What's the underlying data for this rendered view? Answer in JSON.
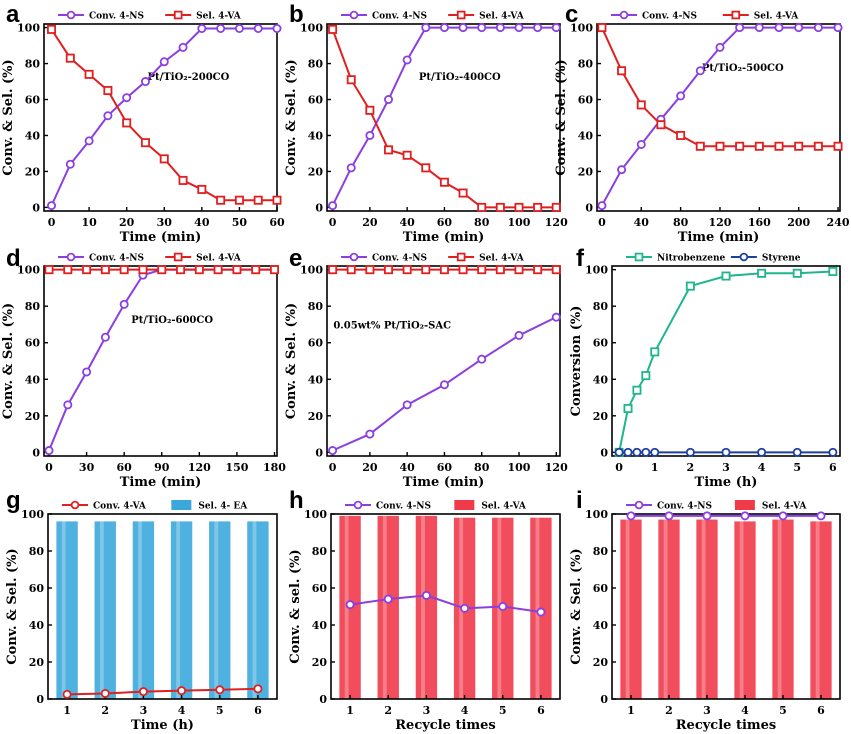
{
  "chart_data": [
    {
      "panel": "a",
      "type": "line",
      "xlabel": "Time (min)",
      "ylabel": "Conv. & Sel. (%)",
      "xlim": [
        -2,
        60
      ],
      "ylim": [
        -2,
        102
      ],
      "xticks": [
        0,
        10,
        20,
        30,
        40,
        50,
        60
      ],
      "yticks": [
        0,
        20,
        40,
        60,
        80,
        100
      ],
      "annotation": "Pt/TiO₂-200CO",
      "legend_position": "top",
      "series": [
        {
          "name": "Conv. 4-NS",
          "color": "#8B3FE0",
          "marker": "circle",
          "x": [
            0,
            5,
            10,
            15,
            20,
            25,
            30,
            35,
            40,
            45,
            50,
            55,
            60
          ],
          "y": [
            1,
            24,
            37,
            51,
            61,
            70,
            81,
            89,
            99.5,
            99.5,
            99.5,
            99.5,
            99.5
          ]
        },
        {
          "name": "Sel. 4-VA",
          "color": "#E02020",
          "marker": "square",
          "x": [
            0,
            5,
            10,
            15,
            20,
            25,
            30,
            35,
            40,
            45,
            50,
            55,
            60
          ],
          "y": [
            99,
            83,
            74,
            65,
            47,
            36,
            27,
            15,
            10,
            4,
            4,
            4,
            4
          ]
        }
      ]
    },
    {
      "panel": "b",
      "type": "line",
      "xlabel": "Time (min)",
      "ylabel": "Conv. & Sel. (%)",
      "xlim": [
        -3,
        122
      ],
      "ylim": [
        -2,
        102
      ],
      "xticks": [
        0,
        20,
        40,
        60,
        80,
        100,
        120
      ],
      "yticks": [
        0,
        20,
        40,
        60,
        80,
        100
      ],
      "annotation": "Pt/TiO₂-400CO",
      "legend_position": "top",
      "series": [
        {
          "name": "Conv. 4-NS",
          "color": "#8B3FE0",
          "marker": "circle",
          "x": [
            0,
            10,
            20,
            30,
            40,
            50,
            60,
            70,
            80,
            90,
            100,
            110,
            120
          ],
          "y": [
            1,
            22,
            40,
            60,
            82,
            100,
            100,
            100,
            100,
            100,
            100,
            100,
            100
          ]
        },
        {
          "name": "Sel. 4-VA",
          "color": "#E02020",
          "marker": "square",
          "x": [
            0,
            10,
            20,
            30,
            40,
            50,
            60,
            70,
            80,
            90,
            100,
            110,
            120
          ],
          "y": [
            99,
            71,
            54,
            32,
            29,
            22,
            14,
            8,
            0,
            0,
            0,
            0,
            0
          ]
        }
      ]
    },
    {
      "panel": "c",
      "type": "line",
      "xlabel": "Time (min)",
      "ylabel": "Conv. & Sel. (%)",
      "xlim": [
        -5,
        242
      ],
      "ylim": [
        -2,
        102
      ],
      "xticks": [
        0,
        40,
        80,
        120,
        160,
        200,
        240
      ],
      "yticks": [
        0,
        20,
        40,
        60,
        80,
        100
      ],
      "annotation": "Pt/TiO₂-500CO",
      "legend_position": "top",
      "series": [
        {
          "name": "Conv. 4-NS",
          "color": "#8B3FE0",
          "marker": "circle",
          "x": [
            0,
            20,
            40,
            60,
            80,
            100,
            120,
            140,
            160,
            180,
            200,
            220,
            240
          ],
          "y": [
            1,
            21,
            35,
            49,
            62,
            76,
            89,
            100,
            100,
            100,
            100,
            100,
            100
          ]
        },
        {
          "name": "Sel. 4-VA",
          "color": "#E02020",
          "marker": "square",
          "x": [
            0,
            20,
            40,
            60,
            80,
            100,
            120,
            140,
            160,
            180,
            200,
            220,
            240
          ],
          "y": [
            100,
            76,
            57,
            46,
            40,
            34,
            34,
            34,
            34,
            34,
            34,
            34,
            34
          ]
        }
      ]
    },
    {
      "panel": "d",
      "type": "line",
      "xlabel": "Time (min)",
      "ylabel": "Conv. & Sel. (%)",
      "xlim": [
        -4,
        182
      ],
      "ylim": [
        -2,
        102
      ],
      "xticks": [
        0,
        30,
        60,
        90,
        120,
        150,
        180
      ],
      "yticks": [
        0,
        20,
        40,
        60,
        80,
        100
      ],
      "annotation": "Pt/TiO₂-600CO",
      "legend_position": "top",
      "series": [
        {
          "name": "Conv. 4-NS",
          "color": "#8B3FE0",
          "marker": "circle",
          "x": [
            0,
            15,
            30,
            45,
            60,
            75,
            90,
            105,
            120,
            135,
            150,
            165,
            180
          ],
          "y": [
            1,
            26,
            44,
            63,
            81,
            97,
            100,
            100,
            100,
            100,
            100,
            100,
            100
          ]
        },
        {
          "name": "Sel. 4-VA",
          "color": "#E02020",
          "marker": "square",
          "x": [
            0,
            15,
            30,
            45,
            60,
            75,
            90,
            105,
            120,
            135,
            150,
            165,
            180
          ],
          "y": [
            100,
            100,
            100,
            100,
            100,
            100,
            100,
            100,
            100,
            100,
            100,
            100,
            100
          ]
        }
      ]
    },
    {
      "panel": "e",
      "type": "line",
      "xlabel": "Time (min)",
      "ylabel": "Conv. & Sel. (%)",
      "xlim": [
        -3,
        122
      ],
      "ylim": [
        -2,
        102
      ],
      "xticks": [
        0,
        20,
        40,
        60,
        80,
        100,
        120
      ],
      "yticks": [
        0,
        20,
        40,
        60,
        80,
        100
      ],
      "annotation": "0.05wt% Pt/TiO₂-SAC",
      "legend_position": "top",
      "series": [
        {
          "name": "Conv. 4-NS",
          "color": "#8B3FE0",
          "marker": "circle",
          "x": [
            0,
            20,
            40,
            60,
            80,
            100,
            120
          ],
          "y": [
            1,
            10,
            26,
            37,
            51,
            64,
            74
          ]
        },
        {
          "name": "Sel. 4-VA",
          "color": "#E02020",
          "marker": "square",
          "x": [
            0,
            10,
            20,
            30,
            40,
            50,
            60,
            70,
            80,
            90,
            100,
            110,
            120
          ],
          "y": [
            100,
            100,
            100,
            100,
            100,
            100,
            100,
            100,
            100,
            100,
            100,
            100,
            100
          ]
        }
      ]
    },
    {
      "panel": "f",
      "type": "line",
      "xlabel": "Time (h)",
      "ylabel": "Conversion (%)",
      "xlim": [
        -0.2,
        6.2
      ],
      "ylim": [
        -2,
        102
      ],
      "xticks": [
        0,
        1,
        2,
        3,
        4,
        5,
        6
      ],
      "yticks": [
        0,
        20,
        40,
        60,
        80,
        100
      ],
      "annotation": "",
      "legend_position": "top",
      "series": [
        {
          "name": "Nitrobenzene",
          "color": "#1FB58F",
          "marker": "square",
          "x": [
            0,
            0.25,
            0.5,
            0.75,
            1,
            2,
            3,
            4,
            5,
            6
          ],
          "y": [
            0,
            24,
            34,
            42,
            55,
            91,
            96.5,
            98,
            98,
            99
          ]
        },
        {
          "name": "Styrene",
          "color": "#1F3FA0",
          "marker": "circle",
          "x": [
            0,
            0.25,
            0.5,
            0.75,
            1,
            2,
            3,
            4,
            5,
            6
          ],
          "y": [
            0,
            0,
            0,
            0,
            0,
            0,
            0,
            0,
            0,
            0
          ]
        }
      ]
    },
    {
      "panel": "g",
      "type": "bar",
      "xlabel": "Time (h)",
      "ylabel": "Conv. & Sel. (%)",
      "categories": [
        "1",
        "2",
        "3",
        "4",
        "5",
        "6"
      ],
      "xlim": [
        0.5,
        6.5
      ],
      "ylim": [
        0,
        100
      ],
      "yticks": [
        0,
        20,
        40,
        60,
        80,
        100
      ],
      "annotation": "",
      "legend_position": "top",
      "bar_series": {
        "name": "Sel. 4- EA",
        "color": "#3BA8DC",
        "values": [
          96,
          96,
          96,
          96,
          96,
          96
        ]
      },
      "line_series": {
        "name": "Conv. 4-VA",
        "color": "#E02020",
        "marker": "circle",
        "values": [
          2.5,
          3,
          4,
          4.5,
          5,
          5.5
        ]
      }
    },
    {
      "panel": "h",
      "type": "bar",
      "xlabel": "Recycle times",
      "ylabel": "Conv. & sel. (%)",
      "categories": [
        "1",
        "2",
        "3",
        "4",
        "5",
        "6"
      ],
      "xlim": [
        0.5,
        6.5
      ],
      "ylim": [
        0,
        100
      ],
      "yticks": [
        0,
        20,
        40,
        60,
        80,
        100
      ],
      "annotation": "",
      "legend_position": "top",
      "bar_series": {
        "name": "Sel. 4-VA",
        "color": "#F03A4A",
        "values": [
          99,
          99,
          99,
          98,
          98,
          98
        ]
      },
      "line_series": {
        "name": "Conv. 4-NS",
        "color": "#8B3FE0",
        "marker": "circle",
        "values": [
          51,
          54,
          56,
          49,
          50,
          47
        ]
      }
    },
    {
      "panel": "i",
      "type": "bar",
      "xlabel": "Recycle times",
      "ylabel": "Conv. & Sel. (%)",
      "categories": [
        "1",
        "2",
        "3",
        "4",
        "5",
        "6"
      ],
      "xlim": [
        0.5,
        6.5
      ],
      "ylim": [
        0,
        100
      ],
      "yticks": [
        0,
        20,
        40,
        60,
        80,
        100
      ],
      "annotation": "",
      "legend_position": "top",
      "bar_series": {
        "name": "Sel. 4-VA",
        "color": "#F03A4A",
        "values": [
          97,
          97,
          97,
          96,
          97,
          96
        ]
      },
      "line_series": {
        "name": "Conv. 4-NS",
        "color": "#8B3FE0",
        "marker": "circle",
        "values": [
          99,
          99,
          99,
          99,
          99,
          99
        ]
      }
    }
  ]
}
